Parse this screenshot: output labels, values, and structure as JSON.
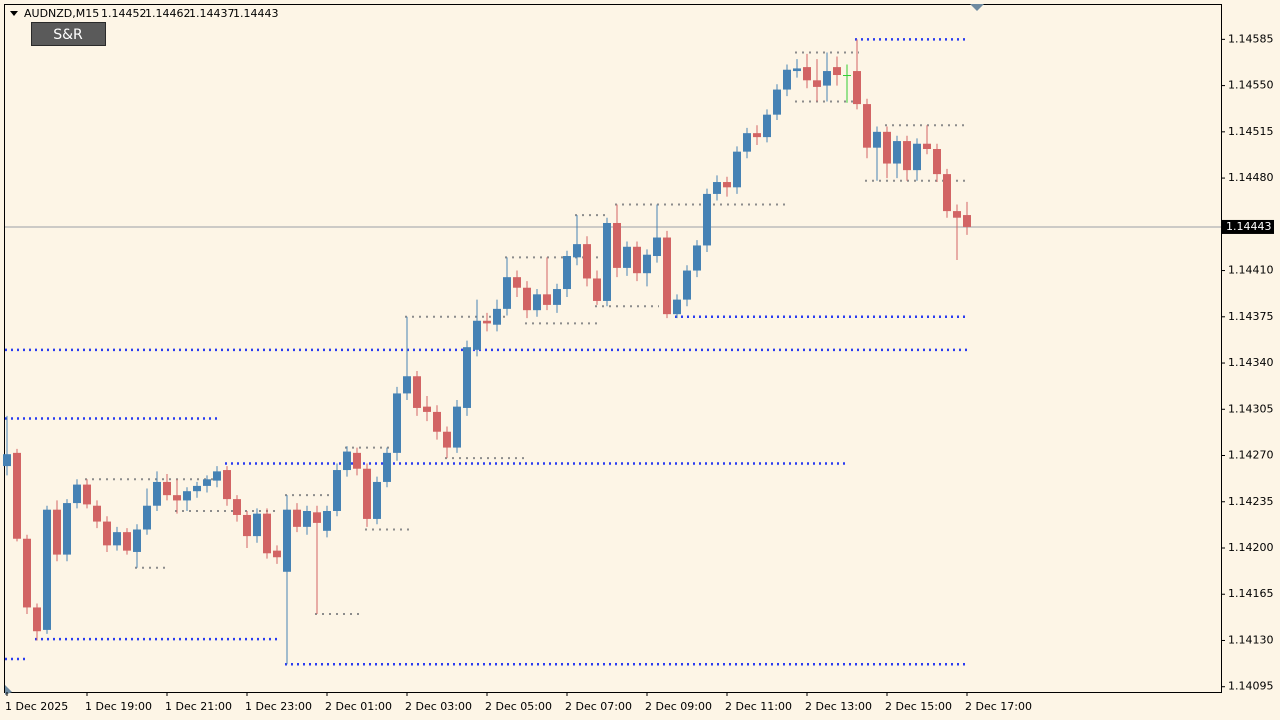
{
  "chart_data": {
    "type": "candlestick",
    "symbol": "AUDNZD,M15",
    "button_label": "S&R",
    "categories": [
      "1 Dec 2025",
      null,
      null,
      null,
      null,
      null,
      null,
      null,
      "1 Dec 19:00",
      null,
      null,
      null,
      null,
      null,
      null,
      null,
      "1 Dec 21:00",
      null,
      null,
      null,
      null,
      null,
      null,
      null,
      "1 Dec 23:00",
      null,
      null,
      null,
      null,
      null,
      null,
      null,
      "2 Dec 01:00",
      null,
      null,
      null,
      null,
      null,
      null,
      null,
      "2 Dec 03:00",
      null,
      null,
      null,
      null,
      null,
      null,
      null,
      "2 Dec 05:00",
      null,
      null,
      null,
      null,
      null,
      null,
      null,
      "2 Dec 07:00",
      null,
      null,
      null,
      null,
      null,
      null,
      null,
      "2 Dec 09:00",
      null,
      null,
      null,
      null,
      null,
      null,
      null,
      "2 Dec 11:00",
      null,
      null,
      null,
      null,
      null,
      null,
      null,
      "2 Dec 13:00",
      null,
      null,
      null,
      null,
      null,
      null,
      null,
      "2 Dec 15:00",
      null,
      null,
      null,
      null,
      null,
      null,
      null,
      "2 Dec 17:00"
    ],
    "ohlc": [
      [
        1.14262,
        1.143,
        1.14255,
        1.14271
      ],
      [
        1.14272,
        1.14275,
        1.14205,
        1.14207
      ],
      [
        1.14207,
        1.1421,
        1.1415,
        1.14155
      ],
      [
        1.14155,
        1.14158,
        1.1413,
        1.14137
      ],
      [
        1.14138,
        1.14232,
        1.14135,
        1.14229
      ],
      [
        1.14229,
        1.14236,
        1.1419,
        1.14195
      ],
      [
        1.14195,
        1.14237,
        1.1419,
        1.14234
      ],
      [
        1.14234,
        1.14252,
        1.1423,
        1.14248
      ],
      [
        1.14248,
        1.14252,
        1.1423,
        1.14233
      ],
      [
        1.14232,
        1.14236,
        1.14215,
        1.1422
      ],
      [
        1.1422,
        1.14224,
        1.14197,
        1.14202
      ],
      [
        1.14202,
        1.14216,
        1.14198,
        1.14212
      ],
      [
        1.14212,
        1.14215,
        1.14195,
        1.14198
      ],
      [
        1.14197,
        1.14218,
        1.14185,
        1.14214
      ],
      [
        1.14214,
        1.14245,
        1.1421,
        1.14232
      ],
      [
        1.14232,
        1.14258,
        1.14228,
        1.1425
      ],
      [
        1.1425,
        1.14256,
        1.14236,
        1.1424
      ],
      [
        1.1424,
        1.14252,
        1.14226,
        1.14236
      ],
      [
        1.14236,
        1.14246,
        1.14228,
        1.14243
      ],
      [
        1.14243,
        1.1425,
        1.14238,
        1.14247
      ],
      [
        1.14247,
        1.14255,
        1.14242,
        1.14252
      ],
      [
        1.14251,
        1.14262,
        1.14246,
        1.14258
      ],
      [
        1.14259,
        1.14262,
        1.14232,
        1.14237
      ],
      [
        1.14237,
        1.1424,
        1.1422,
        1.14225
      ],
      [
        1.14225,
        1.14228,
        1.142,
        1.14209
      ],
      [
        1.14209,
        1.1423,
        1.14204,
        1.14226
      ],
      [
        1.14226,
        1.1423,
        1.14192,
        1.14196
      ],
      [
        1.14198,
        1.14202,
        1.14188,
        1.14193
      ],
      [
        1.14182,
        1.1424,
        1.14112,
        1.14229
      ],
      [
        1.14229,
        1.14234,
        1.14212,
        1.14216
      ],
      [
        1.14216,
        1.14232,
        1.1421,
        1.14228
      ],
      [
        1.14227,
        1.14232,
        1.1415,
        1.14219
      ],
      [
        1.14213,
        1.14232,
        1.14208,
        1.14228
      ],
      [
        1.14228,
        1.14264,
        1.14224,
        1.14259
      ],
      [
        1.14259,
        1.14277,
        1.14254,
        1.14273
      ],
      [
        1.14272,
        1.14276,
        1.14255,
        1.1426
      ],
      [
        1.1426,
        1.14264,
        1.14216,
        1.14222
      ],
      [
        1.14222,
        1.14254,
        1.14218,
        1.1425
      ],
      [
        1.1425,
        1.14276,
        1.14246,
        1.14272
      ],
      [
        1.14272,
        1.14322,
        1.14266,
        1.14317
      ],
      [
        1.14317,
        1.14375,
        1.14312,
        1.1433
      ],
      [
        1.1433,
        1.14334,
        1.143,
        1.14306
      ],
      [
        1.14307,
        1.14315,
        1.14296,
        1.14303
      ],
      [
        1.14303,
        1.14308,
        1.14282,
        1.14288
      ],
      [
        1.14288,
        1.14292,
        1.14268,
        1.14276
      ],
      [
        1.14276,
        1.14312,
        1.14272,
        1.14307
      ],
      [
        1.14306,
        1.14357,
        1.143,
        1.14352
      ],
      [
        1.1435,
        1.14388,
        1.14345,
        1.14372
      ],
      [
        1.14372,
        1.14378,
        1.14364,
        1.1437
      ],
      [
        1.14369,
        1.14388,
        1.14364,
        1.14381
      ],
      [
        1.14381,
        1.1442,
        1.14376,
        1.14405
      ],
      [
        1.14405,
        1.1441,
        1.1439,
        1.14397
      ],
      [
        1.14397,
        1.14402,
        1.14374,
        1.1438
      ],
      [
        1.1438,
        1.14396,
        1.14375,
        1.14392
      ],
      [
        1.14392,
        1.1442,
        1.1438,
        1.14384
      ],
      [
        1.14384,
        1.144,
        1.14378,
        1.14396
      ],
      [
        1.14396,
        1.14425,
        1.1439,
        1.14421
      ],
      [
        1.1442,
        1.14452,
        1.14414,
        1.1443
      ],
      [
        1.1443,
        1.14436,
        1.14398,
        1.14404
      ],
      [
        1.14404,
        1.1441,
        1.14384,
        1.14387
      ],
      [
        1.14387,
        1.1445,
        1.14383,
        1.14446
      ],
      [
        1.14446,
        1.1446,
        1.14405,
        1.14412
      ],
      [
        1.14412,
        1.14432,
        1.14406,
        1.14428
      ],
      [
        1.14428,
        1.14432,
        1.14402,
        1.14408
      ],
      [
        1.14408,
        1.14426,
        1.14398,
        1.14422
      ],
      [
        1.14421,
        1.1446,
        1.14416,
        1.14435
      ],
      [
        1.14435,
        1.1444,
        1.14374,
        1.14377
      ],
      [
        1.14377,
        1.14392,
        1.14374,
        1.14388
      ],
      [
        1.14388,
        1.14414,
        1.14383,
        1.1441
      ],
      [
        1.1441,
        1.14433,
        1.14405,
        1.14429
      ],
      [
        1.14429,
        1.14472,
        1.14424,
        1.14468
      ],
      [
        1.14468,
        1.14482,
        1.14463,
        1.14477
      ],
      [
        1.14477,
        1.14481,
        1.14466,
        1.14473
      ],
      [
        1.14473,
        1.14504,
        1.14468,
        1.145
      ],
      [
        1.145,
        1.14518,
        1.14495,
        1.14514
      ],
      [
        1.14514,
        1.1452,
        1.14505,
        1.14511
      ],
      [
        1.14511,
        1.14532,
        1.14507,
        1.14528
      ],
      [
        1.14528,
        1.14551,
        1.14524,
        1.14547
      ],
      [
        1.14547,
        1.14566,
        1.14542,
        1.14562
      ],
      [
        1.14561,
        1.1457,
        1.14556,
        1.14563
      ],
      [
        1.14564,
        1.14574,
        1.14548,
        1.14554
      ],
      [
        1.14554,
        1.1457,
        1.14538,
        1.14549
      ],
      [
        1.1455,
        1.14575,
        1.14538,
        1.14561
      ],
      [
        1.14564,
        1.14572,
        1.1455,
        1.14558
      ],
      [
        1.14558,
        1.14566,
        1.14537,
        1.14558
      ],
      [
        1.14561,
        1.14585,
        1.14532,
        1.14536
      ],
      [
        1.14536,
        1.1454,
        1.14495,
        1.14503
      ],
      [
        1.14503,
        1.14519,
        1.14478,
        1.14515
      ],
      [
        1.14515,
        1.14519,
        1.1448,
        1.14491
      ],
      [
        1.14491,
        1.14512,
        1.1448,
        1.14508
      ],
      [
        1.14508,
        1.14512,
        1.14478,
        1.14486
      ],
      [
        1.14486,
        1.1451,
        1.14478,
        1.14506
      ],
      [
        1.14506,
        1.1452,
        1.14498,
        1.14502
      ],
      [
        1.14502,
        1.14506,
        1.14477,
        1.14483
      ],
      [
        1.14483,
        1.14487,
        1.1445,
        1.14455
      ],
      [
        1.14455,
        1.1446,
        1.14418,
        1.1445
      ],
      [
        1.14452,
        1.14462,
        1.14437,
        1.14443
      ]
    ],
    "colors": {
      "up": "#4682b4",
      "down": "#d26464",
      "flat": "#32cd32",
      "major_level": "#2a3cf0",
      "minor_level": "#8c8c8c"
    },
    "levels": [
      {
        "price": 1.1435,
        "from": 0,
        "to": 96,
        "kind": "major"
      },
      {
        "price": 1.14298,
        "from": 0,
        "to": 21,
        "kind": "major"
      },
      {
        "price": 1.14264,
        "from": 22,
        "to": 84,
        "kind": "major"
      },
      {
        "price": 1.14112,
        "from": 28,
        "to": 96,
        "kind": "major"
      },
      {
        "price": 1.14375,
        "from": 67,
        "to": 96,
        "kind": "major"
      },
      {
        "price": 1.14585,
        "from": 85,
        "to": 96,
        "kind": "major"
      },
      {
        "price": 1.14131,
        "from": 3,
        "to": 27,
        "kind": "major"
      },
      {
        "price": 1.14116,
        "from": 0,
        "to": 2,
        "kind": "major"
      },
      {
        "price": 1.14252,
        "from": 8,
        "to": 21,
        "kind": "minor"
      },
      {
        "price": 1.14185,
        "from": 13,
        "to": 16,
        "kind": "minor"
      },
      {
        "price": 1.14228,
        "from": 17,
        "to": 27,
        "kind": "minor"
      },
      {
        "price": 1.1424,
        "from": 28,
        "to": 33,
        "kind": "minor"
      },
      {
        "price": 1.1415,
        "from": 31,
        "to": 35,
        "kind": "minor"
      },
      {
        "price": 1.14276,
        "from": 34,
        "to": 38,
        "kind": "minor"
      },
      {
        "price": 1.14214,
        "from": 36,
        "to": 40,
        "kind": "minor"
      },
      {
        "price": 1.14375,
        "from": 40,
        "to": 50,
        "kind": "minor"
      },
      {
        "price": 1.14268,
        "from": 44,
        "to": 52,
        "kind": "minor"
      },
      {
        "price": 1.1442,
        "from": 50,
        "to": 59,
        "kind": "minor"
      },
      {
        "price": 1.1437,
        "from": 52,
        "to": 59,
        "kind": "minor"
      },
      {
        "price": 1.14452,
        "from": 57,
        "to": 60,
        "kind": "minor"
      },
      {
        "price": 1.14383,
        "from": 59,
        "to": 65,
        "kind": "minor"
      },
      {
        "price": 1.1446,
        "from": 61,
        "to": 78,
        "kind": "minor"
      },
      {
        "price": 1.14575,
        "from": 79,
        "to": 85,
        "kind": "minor"
      },
      {
        "price": 1.14538,
        "from": 79,
        "to": 85,
        "kind": "minor"
      },
      {
        "price": 1.1452,
        "from": 88,
        "to": 96,
        "kind": "minor"
      },
      {
        "price": 1.14478,
        "from": 86,
        "to": 96,
        "kind": "minor"
      }
    ],
    "ylim": [
      1.14091,
      1.14611
    ],
    "yticks": [
      1.14095,
      {
        "value": 1.1413,
        "label": "1.14130"
      },
      1.14165,
      {
        "value": 1.142,
        "label": "1.14200"
      },
      1.14235,
      {
        "value": 1.1427,
        "label": "1.14270"
      },
      1.14305,
      {
        "value": 1.1434,
        "label": "1.14340"
      },
      1.14375,
      {
        "value": 1.1441,
        "label": "1.14410"
      },
      {
        "value": 1.1448,
        "label": "1.14480"
      },
      1.14515,
      {
        "value": 1.1455,
        "label": "1.14550"
      },
      1.14585
    ],
    "current_price_color": "#9aa0a6"
  }
}
